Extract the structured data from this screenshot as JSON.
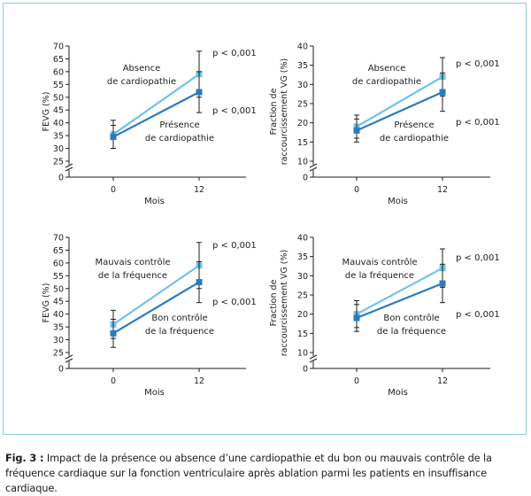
{
  "figure": {
    "caption_label": "Fig. 3 :",
    "caption_text": "Impact de la présence ou absence d’une cardiopathie et du bon ou mauvais contrôle de la fréquence cardiaque sur la fonction ventriculaire après ablation parmi les patients en insuffisance cardiaque."
  },
  "colors": {
    "light_series": "#6dc3ea",
    "dark_series": "#2b7bbd",
    "axis": "#1d1d1b",
    "frame": "#8cc9e8"
  },
  "chart_data": [
    {
      "type": "line",
      "ylabel": "FEVG (%)",
      "xlabel": "Mois",
      "categories": [
        "0",
        "12"
      ],
      "y_ticks": [
        25,
        30,
        35,
        40,
        45,
        50,
        55,
        60,
        65,
        70
      ],
      "y_zero_label": "0",
      "ylim": [
        25,
        70
      ],
      "axis_break": true,
      "series": [
        {
          "name": "Absence de cardiopathie",
          "values": [
            35.5,
            59
          ],
          "error": [
            5.5,
            9
          ],
          "color": "light"
        },
        {
          "name": "Présence de cardiopathie",
          "values": [
            34.5,
            52
          ],
          "error": [
            4.5,
            8
          ],
          "color": "dark"
        }
      ],
      "p_values": [
        "p < 0,001",
        "p < 0,001"
      ]
    },
    {
      "type": "line",
      "ylabel": "Fraction de raccourcissement VG (%)",
      "xlabel": "Mois",
      "categories": [
        "0",
        "12"
      ],
      "y_ticks": [
        10,
        15,
        20,
        25,
        30,
        35,
        40
      ],
      "y_zero_label": "0",
      "ylim": [
        10,
        40
      ],
      "axis_break": true,
      "series": [
        {
          "name": "Absence de cardiopathie",
          "values": [
            19,
            32
          ],
          "error": [
            3,
            5
          ],
          "color": "light"
        },
        {
          "name": "Présence de cardiopathie",
          "values": [
            18,
            28
          ],
          "error": [
            3,
            5
          ],
          "color": "dark"
        }
      ],
      "p_values": [
        "p < 0,001",
        "p < 0,001"
      ]
    },
    {
      "type": "line",
      "ylabel": "FEVG (%)",
      "xlabel": "Mois",
      "categories": [
        "0",
        "12"
      ],
      "y_ticks": [
        25,
        30,
        35,
        40,
        45,
        50,
        55,
        60,
        65,
        70
      ],
      "y_zero_label": "0",
      "ylim": [
        25,
        70
      ],
      "axis_break": true,
      "series": [
        {
          "name": "Mauvais contrôle de la fréquence",
          "values": [
            36,
            59
          ],
          "error": [
            5.5,
            9
          ],
          "color": "light"
        },
        {
          "name": "Bon contrôle de la fréquence",
          "values": [
            32.5,
            52.5
          ],
          "error": [
            5.5,
            8
          ],
          "color": "dark"
        }
      ],
      "p_values": [
        "p < 0,001",
        "p < 0,001"
      ]
    },
    {
      "type": "line",
      "ylabel": "Fraction de raccourcissement VG (%)",
      "xlabel": "Mois",
      "categories": [
        "0",
        "12"
      ],
      "y_ticks": [
        10,
        15,
        20,
        25,
        30,
        35,
        40
      ],
      "y_zero_label": "0",
      "ylim": [
        10,
        40
      ],
      "axis_break": true,
      "series": [
        {
          "name": "Mauvais contrôle de la fréquence",
          "values": [
            20,
            32
          ],
          "error": [
            3.5,
            5
          ],
          "color": "light"
        },
        {
          "name": "Bon contrôle de la fréquence",
          "values": [
            19,
            28
          ],
          "error": [
            3.5,
            5
          ],
          "color": "dark"
        }
      ],
      "p_values": [
        "p < 0,001",
        "p < 0,001"
      ]
    }
  ]
}
